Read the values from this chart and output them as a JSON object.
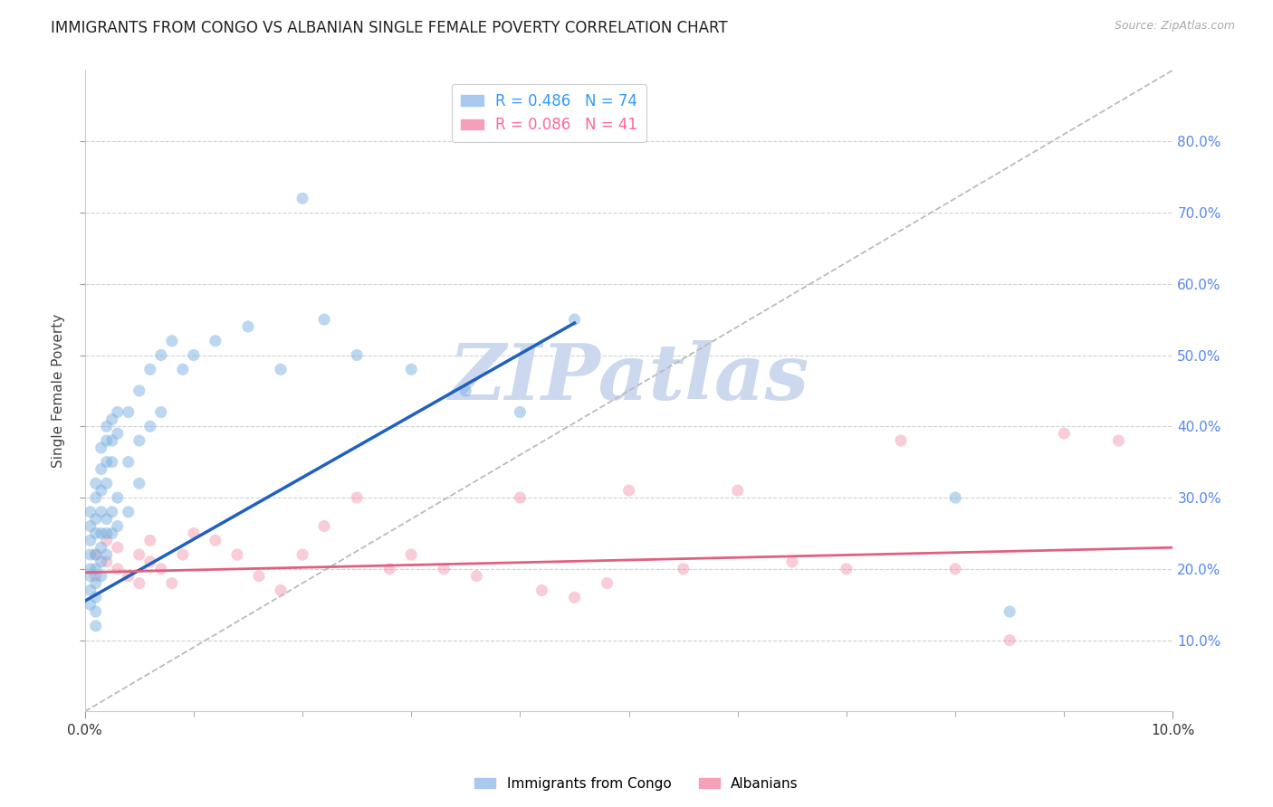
{
  "title": "IMMIGRANTS FROM CONGO VS ALBANIAN SINGLE FEMALE POVERTY CORRELATION CHART",
  "source": "Source: ZipAtlas.com",
  "ylabel": "Single Female Poverty",
  "xlim": [
    0.0,
    0.1
  ],
  "ylim": [
    0.0,
    0.9
  ],
  "background_color": "#ffffff",
  "grid_color": "#cccccc",
  "congo_color": "#7ab0e0",
  "albanian_color": "#f090a8",
  "congo_line_color": "#2060c0",
  "albanian_line_color": "#e06080",
  "diagonal_color": "#bbbbbb",
  "watermark_text": "ZIPatlas",
  "watermark_color": "#ccd8ee",
  "congo_line": {
    "x": [
      0.0,
      0.045
    ],
    "y": [
      0.155,
      0.545
    ]
  },
  "albanian_line": {
    "x": [
      0.0,
      0.1
    ],
    "y": [
      0.195,
      0.23
    ]
  },
  "diagonal_line": {
    "x": [
      0.0,
      0.1
    ],
    "y": [
      0.0,
      0.9
    ]
  },
  "congo_scatter_x": [
    0.0005,
    0.0005,
    0.0005,
    0.0005,
    0.0005,
    0.0005,
    0.0005,
    0.0005,
    0.001,
    0.001,
    0.001,
    0.001,
    0.001,
    0.001,
    0.001,
    0.001,
    0.001,
    0.001,
    0.0015,
    0.0015,
    0.0015,
    0.0015,
    0.0015,
    0.0015,
    0.0015,
    0.0015,
    0.002,
    0.002,
    0.002,
    0.002,
    0.002,
    0.002,
    0.002,
    0.0025,
    0.0025,
    0.0025,
    0.0025,
    0.0025,
    0.003,
    0.003,
    0.003,
    0.003,
    0.004,
    0.004,
    0.004,
    0.005,
    0.005,
    0.005,
    0.006,
    0.006,
    0.007,
    0.007,
    0.008,
    0.009,
    0.01,
    0.012,
    0.015,
    0.018,
    0.02,
    0.022,
    0.025,
    0.03,
    0.035,
    0.04,
    0.045,
    0.08,
    0.085
  ],
  "congo_scatter_y": [
    0.2,
    0.22,
    0.24,
    0.26,
    0.28,
    0.19,
    0.17,
    0.15,
    0.25,
    0.27,
    0.3,
    0.32,
    0.22,
    0.2,
    0.18,
    0.16,
    0.14,
    0.12,
    0.28,
    0.31,
    0.34,
    0.37,
    0.25,
    0.23,
    0.21,
    0.19,
    0.32,
    0.35,
    0.38,
    0.4,
    0.27,
    0.25,
    0.22,
    0.35,
    0.38,
    0.41,
    0.28,
    0.25,
    0.39,
    0.42,
    0.3,
    0.26,
    0.42,
    0.35,
    0.28,
    0.45,
    0.38,
    0.32,
    0.48,
    0.4,
    0.5,
    0.42,
    0.52,
    0.48,
    0.5,
    0.52,
    0.54,
    0.48,
    0.72,
    0.55,
    0.5,
    0.48,
    0.45,
    0.42,
    0.55,
    0.3,
    0.14
  ],
  "albanian_scatter_x": [
    0.001,
    0.001,
    0.002,
    0.002,
    0.003,
    0.003,
    0.004,
    0.005,
    0.005,
    0.006,
    0.006,
    0.007,
    0.008,
    0.009,
    0.01,
    0.012,
    0.014,
    0.016,
    0.018,
    0.02,
    0.022,
    0.025,
    0.028,
    0.03,
    0.033,
    0.036,
    0.04,
    0.042,
    0.045,
    0.048,
    0.05,
    0.055,
    0.06,
    0.065,
    0.07,
    0.075,
    0.08,
    0.085,
    0.09,
    0.095
  ],
  "albanian_scatter_y": [
    0.22,
    0.19,
    0.21,
    0.24,
    0.2,
    0.23,
    0.19,
    0.22,
    0.18,
    0.21,
    0.24,
    0.2,
    0.18,
    0.22,
    0.25,
    0.24,
    0.22,
    0.19,
    0.17,
    0.22,
    0.26,
    0.3,
    0.2,
    0.22,
    0.2,
    0.19,
    0.3,
    0.17,
    0.16,
    0.18,
    0.31,
    0.2,
    0.31,
    0.21,
    0.2,
    0.38,
    0.2,
    0.1,
    0.39,
    0.38
  ]
}
